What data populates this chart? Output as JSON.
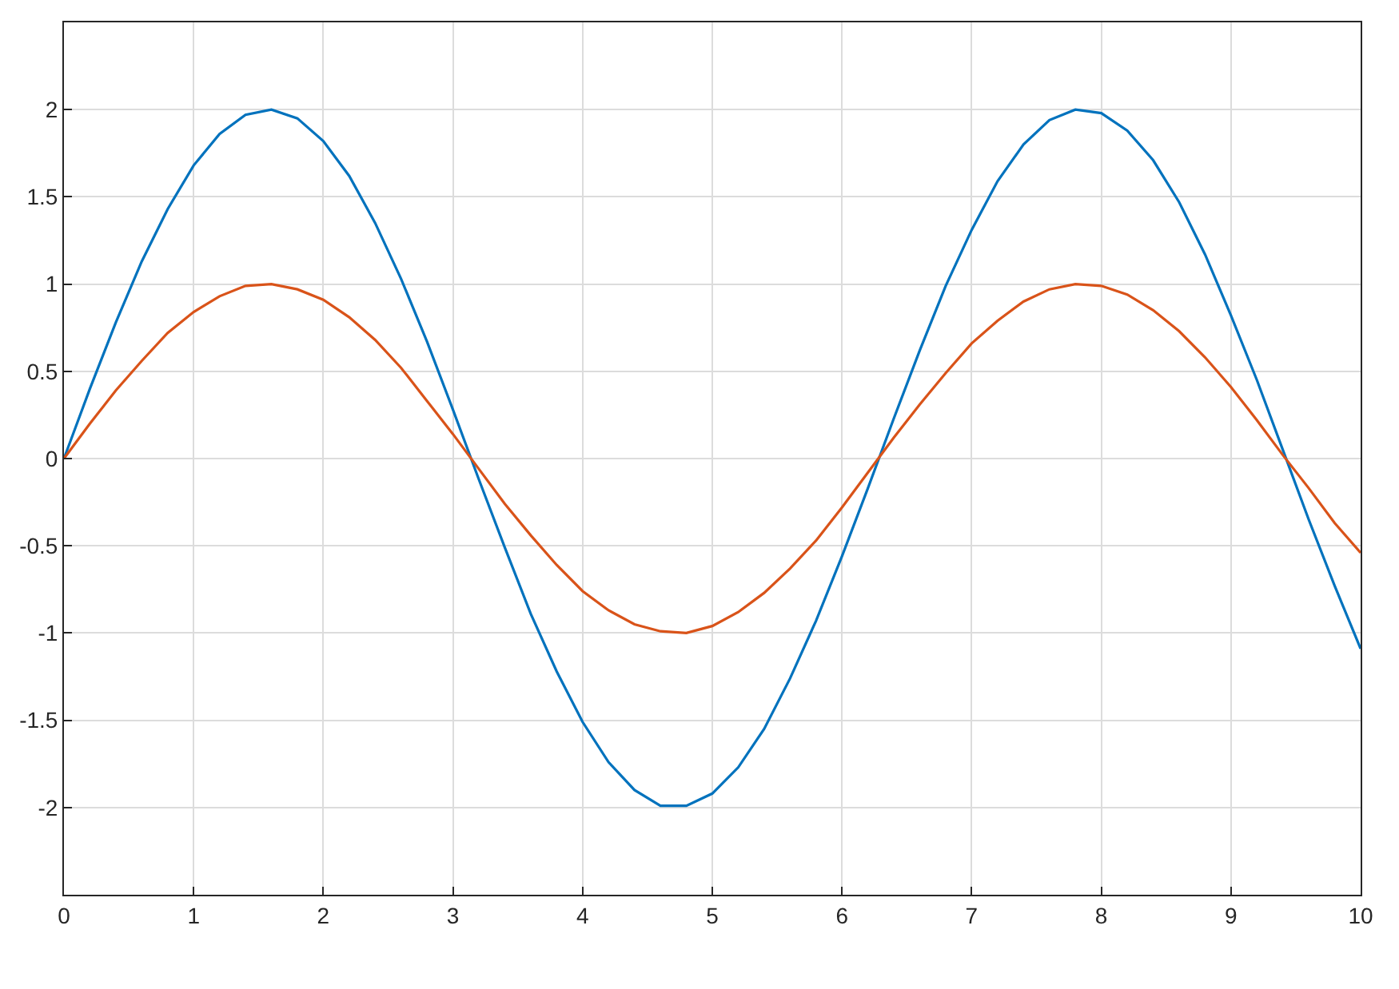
{
  "chart_data": {
    "type": "line",
    "x": [
      0,
      0.2,
      0.4,
      0.6,
      0.8,
      1,
      1.2,
      1.4,
      1.6,
      1.8,
      2,
      2.2,
      2.4,
      2.6,
      2.8,
      3,
      3.2,
      3.4,
      3.6,
      3.8,
      4,
      4.2,
      4.4,
      4.6,
      4.8,
      5,
      5.2,
      5.4,
      5.6,
      5.8,
      6,
      6.2,
      6.4,
      6.6,
      6.8,
      7,
      7.2,
      7.4,
      7.6,
      7.8,
      8,
      8.2,
      8.4,
      8.6,
      8.8,
      9,
      9.2,
      9.4,
      9.6,
      9.8,
      10
    ],
    "series": [
      {
        "color": "#0072bd",
        "values": [
          0,
          0.4,
          0.78,
          1.13,
          1.43,
          1.68,
          1.86,
          1.97,
          2.0,
          1.95,
          1.82,
          1.62,
          1.35,
          1.03,
          0.67,
          0.28,
          -0.12,
          -0.51,
          -0.89,
          -1.22,
          -1.51,
          -1.74,
          -1.9,
          -1.99,
          -1.99,
          -1.92,
          -1.77,
          -1.55,
          -1.26,
          -0.93,
          -0.56,
          -0.17,
          0.23,
          0.62,
          0.99,
          1.31,
          1.59,
          1.8,
          1.94,
          2.0,
          1.98,
          1.88,
          1.71,
          1.47,
          1.17,
          0.82,
          0.45,
          0.05,
          -0.35,
          -0.73,
          -1.09
        ]
      },
      {
        "color": "#d95319",
        "values": [
          0,
          0.2,
          0.39,
          0.56,
          0.72,
          0.84,
          0.93,
          0.99,
          1.0,
          0.97,
          0.91,
          0.81,
          0.68,
          0.52,
          0.33,
          0.14,
          -0.06,
          -0.26,
          -0.44,
          -0.61,
          -0.76,
          -0.87,
          -0.95,
          -0.99,
          -1.0,
          -0.96,
          -0.88,
          -0.77,
          -0.63,
          -0.47,
          -0.28,
          -0.08,
          0.12,
          0.31,
          0.49,
          0.66,
          0.79,
          0.9,
          0.97,
          1.0,
          0.99,
          0.94,
          0.85,
          0.73,
          0.58,
          0.41,
          0.22,
          0.02,
          -0.17,
          -0.37,
          -0.54
        ]
      }
    ],
    "xlim": [
      0,
      10
    ],
    "xticks": [
      0,
      1,
      2,
      3,
      4,
      5,
      6,
      7,
      8,
      9,
      10
    ],
    "ylim": [
      -2.5,
      2.5
    ],
    "yticks": [
      -2,
      -1.5,
      -1,
      -0.5,
      0,
      0.5,
      1,
      1.5,
      2
    ],
    "grid": true,
    "marker": "none",
    "line_style": "solid"
  }
}
